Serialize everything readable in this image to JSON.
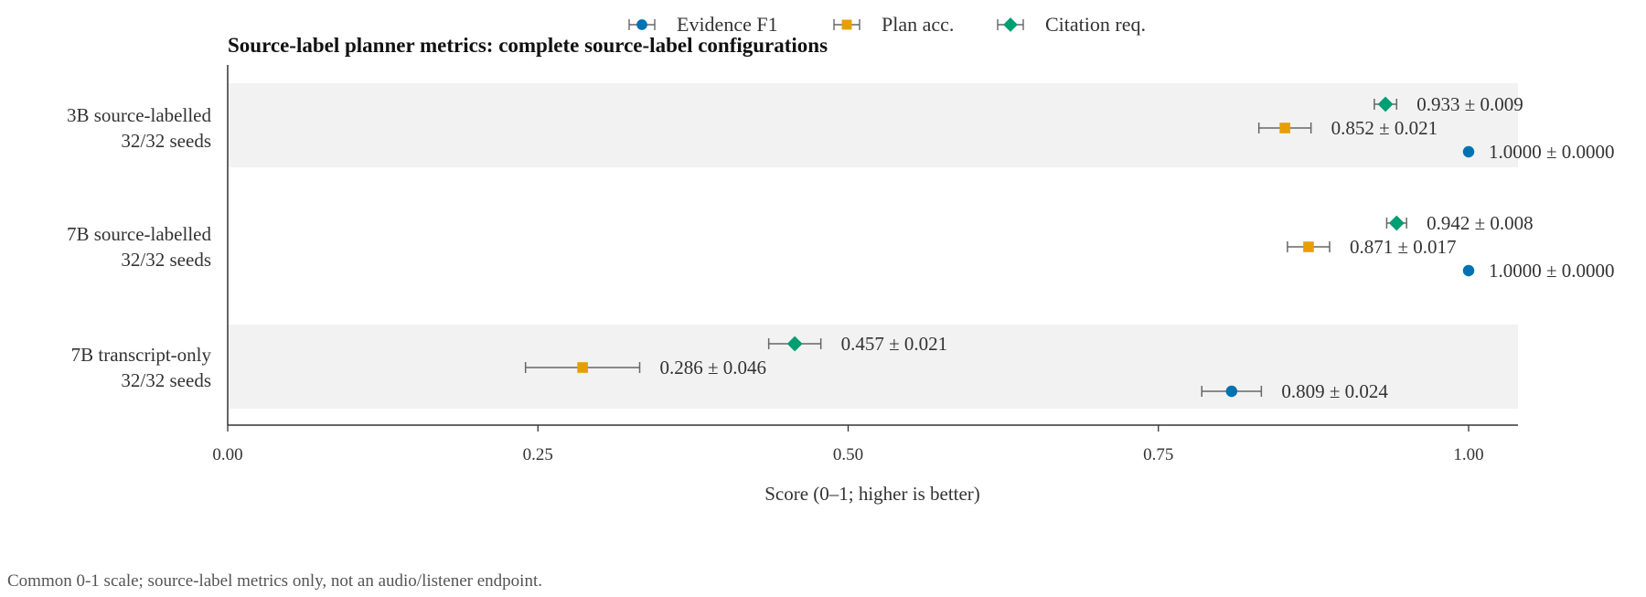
{
  "chart_data": {
    "type": "scatter",
    "orientation": "horizontal",
    "title": "Source-label planner metrics: complete source-label configurations",
    "xlabel": "Score (0–1; higher is better)",
    "xlim": [
      0,
      1.04
    ],
    "xticks": [
      0.0,
      0.25,
      0.5,
      0.75,
      1.0
    ],
    "xtick_labels": [
      "0.00",
      "0.25",
      "0.50",
      "0.75",
      "1.00"
    ],
    "categories": [
      {
        "line1": "3B source-labelled",
        "line2": "32/32 seeds",
        "shaded": true
      },
      {
        "line1": "7B source-labelled",
        "line2": "32/32 seeds",
        "shaded": false
      },
      {
        "line1": "7B transcript-only",
        "line2": "32/32 seeds",
        "shaded": true
      }
    ],
    "legend_position": "top-center",
    "series": [
      {
        "name": "Evidence F1",
        "marker": "circle",
        "color": "#0072B2",
        "values": [
          1.0,
          1.0,
          0.809
        ],
        "errors": [
          0.0,
          0.0,
          0.024
        ],
        "labels": [
          "1.0000 ± 0.0000",
          "1.0000 ± 0.0000",
          "0.809 ± 0.024"
        ]
      },
      {
        "name": "Plan acc.",
        "marker": "square",
        "color": "#E69F00",
        "values": [
          0.852,
          0.871,
          0.286
        ],
        "errors": [
          0.021,
          0.017,
          0.046
        ],
        "labels": [
          "0.852 ± 0.021",
          "0.871 ± 0.017",
          "0.286 ± 0.046"
        ]
      },
      {
        "name": "Citation req.",
        "marker": "diamond",
        "color": "#009E73",
        "values": [
          0.933,
          0.942,
          0.457
        ],
        "errors": [
          0.009,
          0.008,
          0.021
        ],
        "labels": [
          "0.933 ± 0.009",
          "0.942 ± 0.008",
          "0.457 ± 0.021"
        ]
      }
    ],
    "footnote": "Common 0-1 scale; source-label metrics only, not an audio/listener endpoint.",
    "grid": false
  }
}
